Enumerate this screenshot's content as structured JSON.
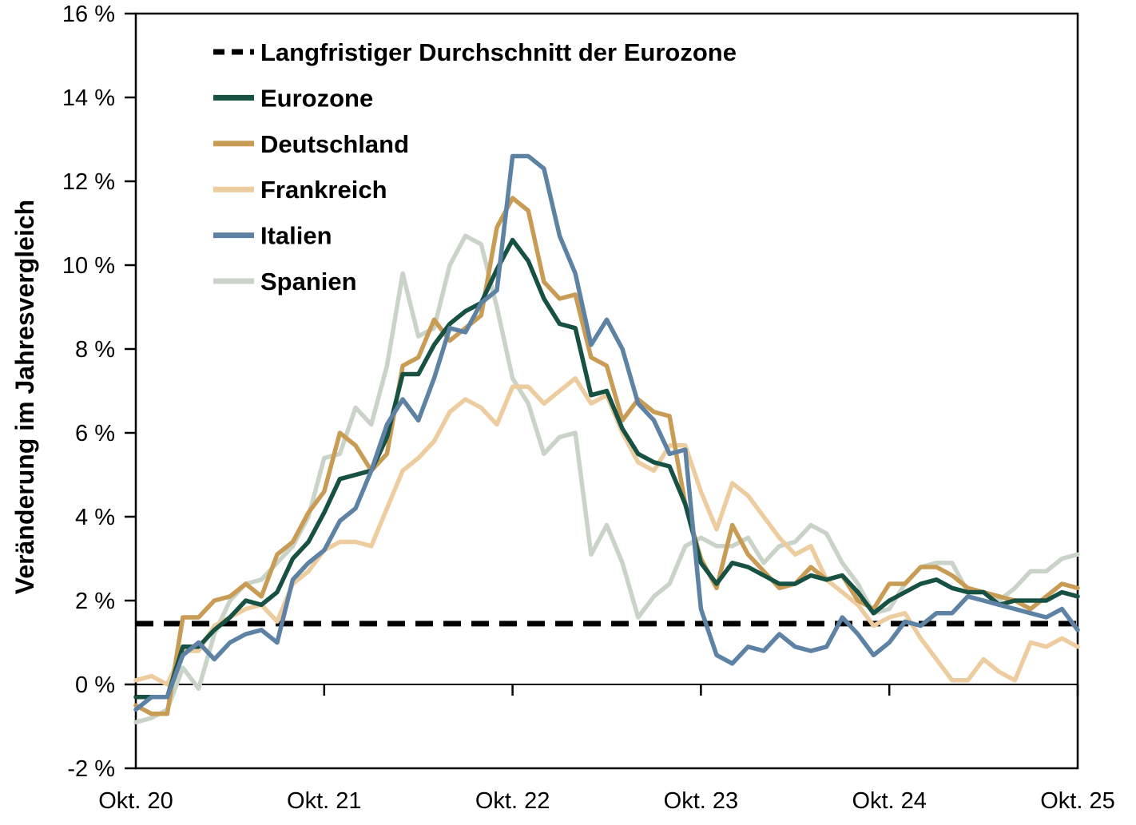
{
  "chart_data": {
    "type": "line",
    "title": "",
    "ylabel": "Veränderung im Jahresvergleich",
    "xlabel": "",
    "frequency": "monthly",
    "x_range": [
      "Okt. 20",
      "Okt. 25"
    ],
    "x_tick_labels": [
      "Okt. 20",
      "Okt. 21",
      "Okt. 22",
      "Okt. 23",
      "Okt. 24",
      "Okt. 25"
    ],
    "months_between_x_ticks": 12,
    "y_axis": {
      "min": -2,
      "max": 16,
      "step": 2,
      "tick_labels": [
        "16 %",
        "14 %",
        "12 %",
        "10 %",
        "8 %",
        "6 %",
        "4 %",
        "2 %",
        "0 %",
        "-2 %"
      ]
    },
    "grid": "none",
    "zero_line": true,
    "legend_position": "top-left-inside",
    "reference_line": {
      "label": "Langfristiger Durchschnitt der Eurozone",
      "value": 1.45,
      "style": "dashed",
      "color": "#000000"
    },
    "series": [
      {
        "name": "Eurozone",
        "color": "#175143",
        "values": [
          -0.3,
          -0.3,
          -0.3,
          0.9,
          0.9,
          1.3,
          1.6,
          2.0,
          1.9,
          2.2,
          3.0,
          3.4,
          4.1,
          4.9,
          5.0,
          5.1,
          5.9,
          7.4,
          7.4,
          8.1,
          8.6,
          8.9,
          9.1,
          9.9,
          10.6,
          10.1,
          9.2,
          8.6,
          8.5,
          6.9,
          7.0,
          6.1,
          5.5,
          5.3,
          5.2,
          4.3,
          2.9,
          2.4,
          2.9,
          2.8,
          2.6,
          2.4,
          2.4,
          2.6,
          2.5,
          2.6,
          2.2,
          1.7,
          2.0,
          2.2,
          2.4,
          2.5,
          2.3,
          2.2,
          2.2,
          1.9,
          2.0,
          2.0,
          2.0,
          2.2,
          2.1
        ]
      },
      {
        "name": "Deutschland",
        "color": "#c89c55",
        "values": [
          -0.5,
          -0.7,
          -0.7,
          1.6,
          1.6,
          2.0,
          2.1,
          2.4,
          2.1,
          3.1,
          3.4,
          4.1,
          4.6,
          6.0,
          5.7,
          5.1,
          5.5,
          7.6,
          7.8,
          8.7,
          8.2,
          8.5,
          8.8,
          10.9,
          11.6,
          11.3,
          9.6,
          9.2,
          9.3,
          7.8,
          7.6,
          6.3,
          6.8,
          6.5,
          6.4,
          4.3,
          3.0,
          2.3,
          3.8,
          3.1,
          2.7,
          2.3,
          2.4,
          2.8,
          2.5,
          2.6,
          2.0,
          1.8,
          2.4,
          2.4,
          2.8,
          2.8,
          2.6,
          2.3,
          2.2,
          2.1,
          2.0,
          1.8,
          2.1,
          2.4,
          2.3
        ]
      },
      {
        "name": "Frankreich",
        "color": "#edcc9f",
        "values": [
          0.1,
          0.2,
          0.0,
          0.8,
          0.8,
          1.4,
          1.6,
          1.8,
          1.9,
          1.5,
          2.4,
          2.7,
          3.2,
          3.4,
          3.4,
          3.3,
          4.2,
          5.1,
          5.4,
          5.8,
          6.5,
          6.8,
          6.6,
          6.2,
          7.1,
          7.1,
          6.7,
          7.0,
          7.3,
          6.7,
          6.9,
          6.0,
          5.3,
          5.1,
          5.7,
          5.7,
          4.6,
          3.7,
          4.8,
          4.5,
          4.0,
          3.5,
          3.1,
          3.3,
          2.5,
          2.2,
          1.9,
          1.4,
          1.6,
          1.7,
          1.1,
          0.6,
          0.1,
          0.1,
          0.6,
          0.3,
          0.1,
          1.0,
          0.9,
          1.1,
          0.9
        ]
      },
      {
        "name": "Italien",
        "color": "#5e82a4",
        "values": [
          -0.6,
          -0.3,
          -0.3,
          0.7,
          1.0,
          0.6,
          1.0,
          1.2,
          1.3,
          1.0,
          2.5,
          2.9,
          3.2,
          3.9,
          4.2,
          5.1,
          6.2,
          6.8,
          6.3,
          7.3,
          8.5,
          8.4,
          9.1,
          9.4,
          12.6,
          12.6,
          12.3,
          10.7,
          9.8,
          8.1,
          8.7,
          8.0,
          6.7,
          6.3,
          5.5,
          5.6,
          1.8,
          0.7,
          0.5,
          0.9,
          0.8,
          1.2,
          0.9,
          0.8,
          0.9,
          1.6,
          1.2,
          0.7,
          1.0,
          1.5,
          1.4,
          1.7,
          1.7,
          2.1,
          2.0,
          1.9,
          1.8,
          1.7,
          1.6,
          1.8,
          1.3
        ]
      },
      {
        "name": "Spanien",
        "color": "#c9d3c8",
        "values": [
          -0.9,
          -0.8,
          -0.6,
          0.4,
          -0.1,
          1.2,
          2.0,
          2.4,
          2.5,
          2.9,
          3.3,
          4.0,
          5.4,
          5.5,
          6.6,
          6.2,
          7.6,
          9.8,
          8.3,
          8.5,
          10.0,
          10.7,
          10.5,
          9.0,
          7.3,
          6.7,
          5.5,
          5.9,
          6.0,
          3.1,
          3.8,
          2.9,
          1.6,
          2.1,
          2.4,
          3.3,
          3.5,
          3.3,
          3.3,
          3.5,
          2.9,
          3.3,
          3.4,
          3.8,
          3.6,
          2.9,
          2.4,
          1.7,
          1.8,
          2.4,
          2.8,
          2.9,
          2.9,
          2.2,
          2.2,
          2.0,
          2.3,
          2.7,
          2.7,
          3.0,
          3.1
        ]
      }
    ],
    "legend_entries": [
      "Langfristiger Durchschnitt der Eurozone",
      "Eurozone",
      "Deutschland",
      "Frankreich",
      "Italien",
      "Spanien"
    ],
    "draw_order_bottom_to_top": [
      "reference",
      "Spanien",
      "Frankreich",
      "Deutschland",
      "Eurozone",
      "Italien"
    ]
  }
}
